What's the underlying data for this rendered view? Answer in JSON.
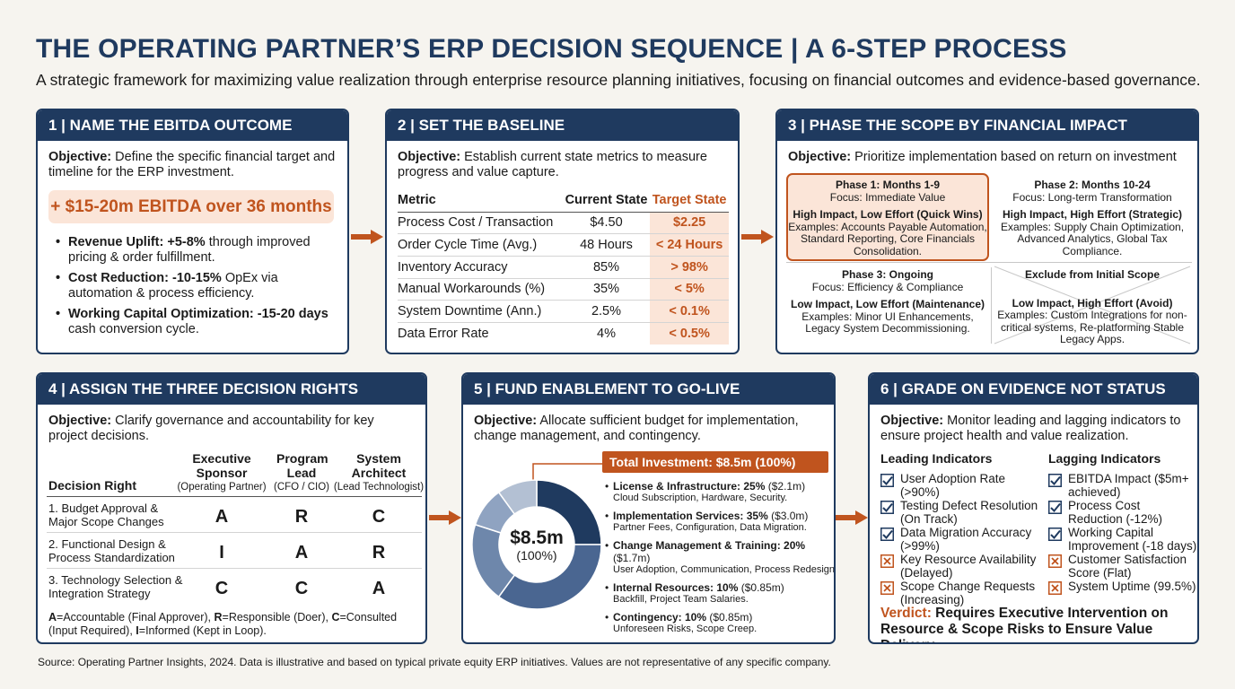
{
  "title": "THE OPERATING PARTNER’S ERP DECISION SEQUENCE | A 6-STEP PROCESS",
  "subtitle": "A strategic framework for maximizing value realization through enterprise resource planning initiatives, focusing on financial outcomes and evidence-based governance.",
  "colors": {
    "navy": "#1f3a5f",
    "orange": "#c0541e",
    "peach": "#fbe5d8"
  },
  "objective_label": "Objective:",
  "panel1": {
    "header": "1 | NAME THE EBITDA OUTCOME",
    "objective": " Define the specific financial target and timeline for the ERP investment.",
    "highlight": "+ $15-20m EBITDA over 36 months",
    "bullets": [
      {
        "label": "Revenue Uplift: +5-8%",
        "text": " through improved pricing & order fulfillment."
      },
      {
        "label": "Cost Reduction: -10-15%",
        "text": " OpEx via automation & process efficiency."
      },
      {
        "label": "Working Capital Optimization: -15-20 days",
        "text": " cash conversion cycle."
      }
    ]
  },
  "panel2": {
    "header": "2 | SET THE BASELINE",
    "objective": " Establish current state metrics to measure progress and value capture.",
    "columns": [
      "Metric",
      "Current State",
      "Target State"
    ],
    "rows": [
      [
        "Process Cost / Transaction",
        "$4.50",
        "$2.25"
      ],
      [
        "Order Cycle Time (Avg.)",
        "48 Hours",
        "< 24 Hours"
      ],
      [
        "Inventory Accuracy",
        "85%",
        "> 98%"
      ],
      [
        "Manual Workarounds (%)",
        "35%",
        "< 5%"
      ],
      [
        "System Downtime (Ann.)",
        "2.5%",
        "< 0.1%"
      ],
      [
        "Data Error Rate",
        "4%",
        "< 0.5%"
      ]
    ]
  },
  "panel3": {
    "header": "3 | PHASE THE SCOPE BY FINANCIAL IMPACT",
    "objective": " Prioritize implementation based on return on investment",
    "phases": [
      {
        "title": "Phase 1: Months 1-9",
        "focus": "Focus: Immediate Value",
        "category": "High Impact, Low Effort (Quick Wins)",
        "examples": "Examples: Accounts Payable Automation, Standard Reporting, Core Financials Consolidation."
      },
      {
        "title": "Phase 2: Months 10-24",
        "focus": "Focus: Long-term Transformation",
        "category": "High Impact, High Effort (Strategic)",
        "examples": "Examples: Supply Chain Optimization, Advanced Analytics, Global Tax Compliance."
      },
      {
        "title": "Phase 3: Ongoing",
        "focus": "Focus: Efficiency & Compliance",
        "category": "Low Impact, Low Effort (Maintenance)",
        "examples": "Examples: Minor UI Enhancements, Legacy System Decommissioning."
      },
      {
        "title": "Exclude from Initial Scope",
        "focus": "",
        "category": "Low Impact, High Effort (Avoid)",
        "examples": "Examples: Custom Integrations for non-critical systems, Re-platforming Stable Legacy Apps."
      }
    ]
  },
  "panel4": {
    "header": "4 | ASSIGN THE THREE DECISION RIGHTS",
    "objective": " Clarify governance and accountability for key project decisions.",
    "row_header": "Decision Right",
    "roles": [
      {
        "title": "Executive Sponsor",
        "sub": "(Operating Partner)"
      },
      {
        "title": "Program Lead",
        "sub": "(CFO / CIO)"
      },
      {
        "title": "System Architect",
        "sub": "(Lead Technologist)"
      }
    ],
    "rows": [
      {
        "label": "1. Budget Approval & Major Scope Changes",
        "values": [
          "A",
          "R",
          "C"
        ]
      },
      {
        "label": "2. Functional Design & Process Standardization",
        "values": [
          "I",
          "A",
          "R"
        ]
      },
      {
        "label": "3. Technology Selection & Integration Strategy",
        "values": [
          "C",
          "C",
          "A"
        ]
      }
    ],
    "legend": [
      {
        "key": "A",
        "text": "=Accountable (Final Approver), "
      },
      {
        "key": "R",
        "text": "=Responsible (Doer), "
      },
      {
        "key": "C",
        "text": "=Consulted (Input Required), "
      },
      {
        "key": "I",
        "text": "=Informed (Kept in Loop)."
      }
    ]
  },
  "panel5": {
    "header": "5 | FUND ENABLEMENT TO GO-LIVE",
    "objective": " Allocate sufficient budget for implementation, change management, and contingency.",
    "total_label": "Total Investment: $8.5m (100%)",
    "center_value": "$8.5m",
    "center_pct": "(100%)",
    "items": [
      {
        "label": "License & Infrastructure: 25%",
        "amount": " ($2.1m)",
        "detail": "Cloud Subscription, Hardware, Security."
      },
      {
        "label": "Implementation Services: 35%",
        "amount": " ($3.0m)",
        "detail": "Partner Fees, Configuration, Data Migration."
      },
      {
        "label": "Change Management & Training: 20%",
        "amount": " ($1.7m)",
        "detail": "User Adoption, Communication, Process Redesign."
      },
      {
        "label": "Internal Resources: 10%",
        "amount": " ($0.85m)",
        "detail": "Backfill, Project Team Salaries."
      },
      {
        "label": "Contingency: 10%",
        "amount": " ($0.85m)",
        "detail": "Unforeseen Risks, Scope Creep."
      }
    ]
  },
  "chart_data": {
    "type": "pie",
    "title": "",
    "categories": [
      "License & Infrastructure",
      "Implementation Services",
      "Change Management & Training",
      "Internal Resources",
      "Contingency"
    ],
    "values": [
      25,
      35,
      20,
      10,
      10
    ],
    "colors": [
      "#1f3a5f",
      "#4a6691",
      "#6e87ab",
      "#8fa3c1",
      "#b3c0d3"
    ]
  },
  "panel6": {
    "header": "6 | GRADE ON EVIDENCE NOT STATUS",
    "objective": " Monitor leading and lagging indicators to ensure project health and value realization.",
    "leading_title": "Leading Indicators",
    "lagging_title": "Lagging Indicators",
    "leading": [
      {
        "text": "User Adoption Rate (>90%)",
        "status": "check"
      },
      {
        "text": "Testing Defect Resolution (On Track)",
        "status": "check"
      },
      {
        "text": "Data Migration Accuracy (>99%)",
        "status": "check"
      },
      {
        "text": "Key Resource Availability (Delayed)",
        "status": "cross"
      },
      {
        "text": "Scope Change Requests (Increasing)",
        "status": "cross"
      }
    ],
    "lagging": [
      {
        "text": "EBITDA Impact ($5m+ achieved)",
        "status": "check"
      },
      {
        "text": "Process Cost Reduction (-12%)",
        "status": "check"
      },
      {
        "text": "Working Capital Improvement (-18 days)",
        "status": "check"
      },
      {
        "text": "Customer Satisfaction Score (Flat)",
        "status": "cross"
      },
      {
        "text": "System Uptime (99.5%)",
        "status": "cross"
      }
    ],
    "verdict_label": "Verdict:",
    "verdict_text": " Requires Executive Intervention on Resource & Scope Risks to Ensure Value Delivery."
  },
  "source": "Source: Operating Partner Insights, 2024. Data is illustrative and based on typical private equity ERP initiatives. Values are not representative of any specific company."
}
